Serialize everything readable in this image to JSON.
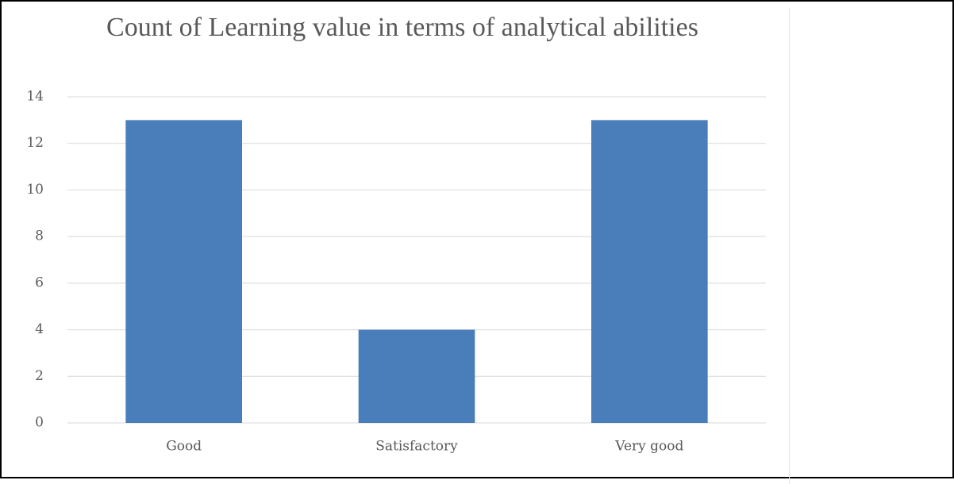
{
  "chart_data": {
    "type": "bar",
    "title": "Count of Learning value in terms of analytical abilities",
    "categories": [
      "Good",
      "Satisfactory",
      "Very good"
    ],
    "values": [
      13,
      4,
      13
    ],
    "color": "#4a7ebb",
    "ylim": [
      0,
      14
    ],
    "yticks": [
      0,
      2,
      4,
      6,
      8,
      10,
      12,
      14
    ],
    "grid": true
  }
}
